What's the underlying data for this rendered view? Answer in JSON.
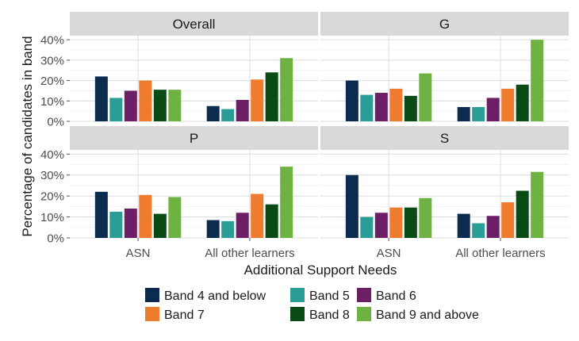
{
  "chart_data": {
    "type": "bar",
    "xlabel": "Additional Support Needs",
    "ylabel": "Percentage of candidates in band",
    "categories": [
      "ASN",
      "All other learners"
    ],
    "yticks": [
      "0%",
      "10%",
      "20%",
      "30%",
      "40%"
    ],
    "ylim": [
      0,
      42
    ],
    "grid": true,
    "legend_position": "bottom",
    "series": [
      {
        "name": "Band 4 and below",
        "color": "#0b2c4e"
      },
      {
        "name": "Band 5",
        "color": "#2a9d97"
      },
      {
        "name": "Band 6",
        "color": "#6d1f66"
      },
      {
        "name": "Band 7",
        "color": "#ef7b2f"
      },
      {
        "name": "Band 8",
        "color": "#0a4a14"
      },
      {
        "name": "Band 9 and above",
        "color": "#6eb242"
      }
    ],
    "panels": [
      {
        "title": "Overall",
        "values": [
          [
            22,
            11.5,
            15,
            20,
            15.5,
            15.5
          ],
          [
            7.5,
            6,
            10.5,
            20.5,
            24,
            31
          ]
        ]
      },
      {
        "title": "G",
        "values": [
          [
            20,
            13,
            14,
            16,
            12.5,
            23.5
          ],
          [
            7,
            7,
            11.5,
            16,
            18,
            40
          ]
        ]
      },
      {
        "title": "P",
        "values": [
          [
            22,
            12.5,
            14,
            20.5,
            11.5,
            19.5
          ],
          [
            8.5,
            8,
            12,
            21,
            16,
            34
          ]
        ]
      },
      {
        "title": "S",
        "values": [
          [
            30,
            10,
            12,
            14.5,
            14.5,
            19
          ],
          [
            11.5,
            7,
            10.5,
            17,
            22.5,
            31.5
          ]
        ]
      }
    ]
  }
}
